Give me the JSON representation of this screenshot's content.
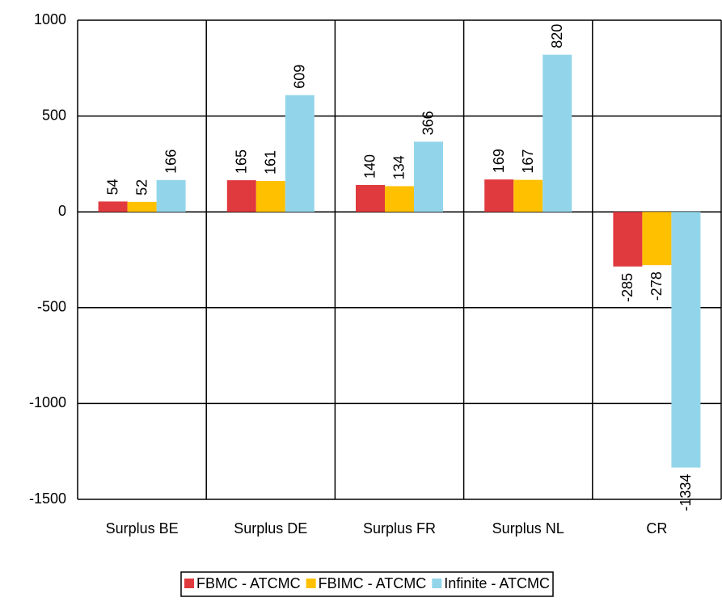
{
  "chart_data": {
    "type": "bar",
    "categories": [
      "Surplus BE",
      "Surplus DE",
      "Surplus FR",
      "Surplus NL",
      "CR"
    ],
    "series": [
      {
        "name": "FBMC - ATCMC",
        "color": "#e0393e",
        "values": [
          54,
          165,
          140,
          169,
          -285
        ]
      },
      {
        "name": "FBIMC - ATCMC",
        "color": "#ffc000",
        "values": [
          52,
          161,
          134,
          167,
          -278
        ]
      },
      {
        "name": "Infinite - ATCMC",
        "color": "#92d5ea",
        "values": [
          166,
          609,
          366,
          820,
          -1334
        ]
      }
    ],
    "ylim": [
      -1500,
      1000
    ],
    "yticks": [
      -1500,
      -1000,
      -500,
      0,
      500,
      1000
    ],
    "grid": true,
    "legend": "bottom"
  }
}
